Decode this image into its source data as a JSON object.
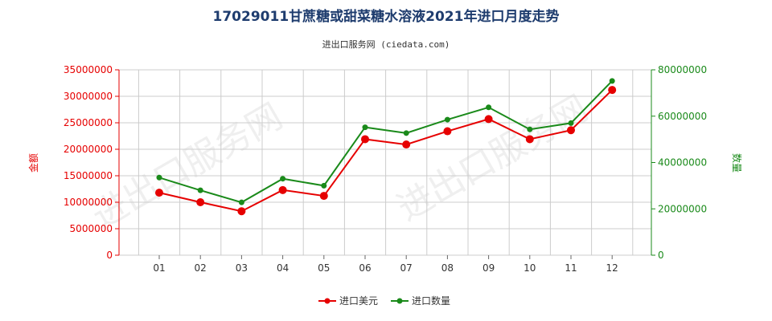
{
  "title": "17029011甘蔗糖或甜菜糖水溶液2021年进口月度走势",
  "subtitle": "进出口服务网 (ciedata.com)",
  "watermark": "进出口服务网",
  "colors": {
    "left_axis": "#e60000",
    "right_axis": "#1a8a1a",
    "grid": "#cccccc",
    "tick_text": "#333333"
  },
  "chart_data": {
    "type": "line",
    "categories": [
      "01",
      "02",
      "03",
      "04",
      "05",
      "06",
      "07",
      "08",
      "09",
      "10",
      "11",
      "12"
    ],
    "left_axis": {
      "label": "金额",
      "ylim": [
        0,
        35000000
      ],
      "ticks": [
        "0",
        "5000000",
        "10000000",
        "15000000",
        "20000000",
        "25000000",
        "30000000",
        "35000000"
      ],
      "tick_values": [
        0,
        5000000,
        10000000,
        15000000,
        20000000,
        25000000,
        30000000,
        35000000
      ]
    },
    "right_axis": {
      "label": "数量",
      "ylim": [
        0,
        80000000
      ],
      "ticks": [
        "0",
        "20000000",
        "40000000",
        "60000000",
        "80000000"
      ],
      "tick_values": [
        0,
        20000000,
        40000000,
        60000000,
        80000000
      ]
    },
    "series": [
      {
        "name": "进口美元",
        "axis": "left",
        "color": "#e60000",
        "values": [
          11800000,
          10000000,
          8300000,
          12300000,
          11200000,
          21900000,
          20900000,
          23400000,
          25700000,
          21900000,
          23600000,
          31200000
        ]
      },
      {
        "name": "进口数量",
        "axis": "right",
        "color": "#1a8a1a",
        "values": [
          33500000,
          28000000,
          22800000,
          33000000,
          30000000,
          55200000,
          52700000,
          58500000,
          63800000,
          54300000,
          57000000,
          75200000
        ]
      }
    ],
    "grid": true,
    "legend_position": "bottom-center"
  }
}
